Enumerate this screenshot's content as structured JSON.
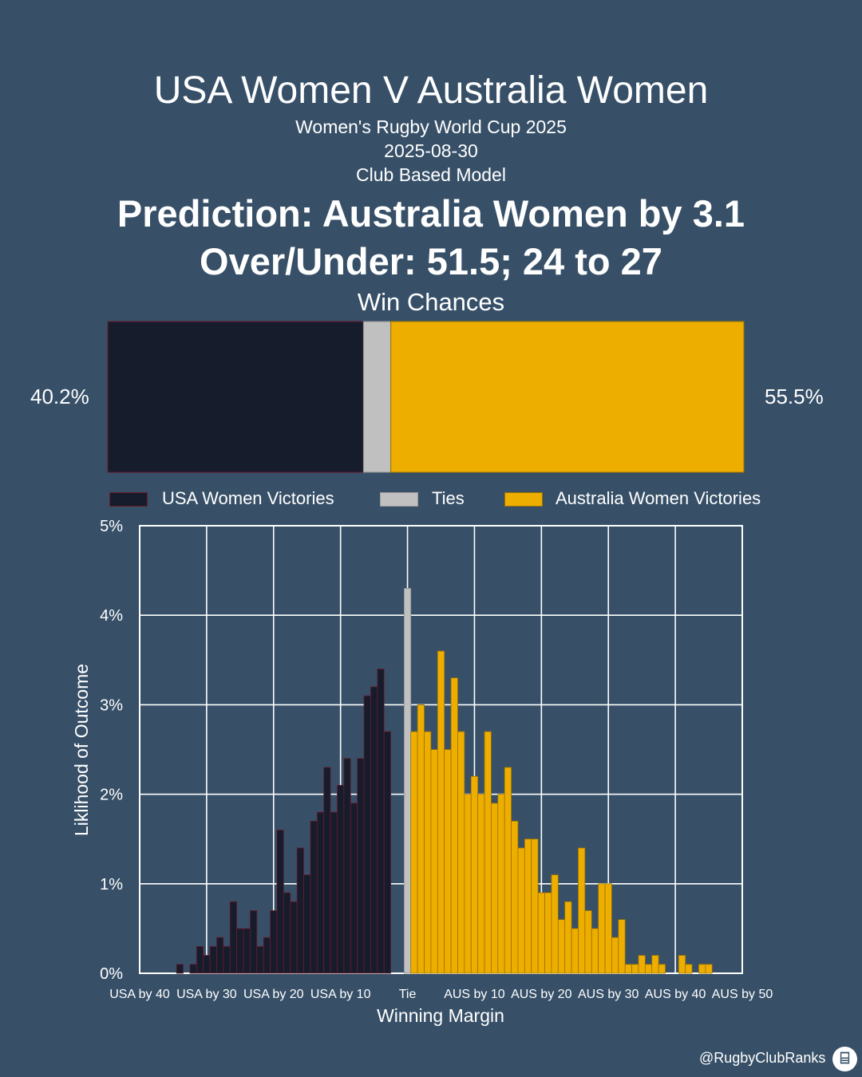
{
  "header": {
    "title": "USA Women V Australia Women",
    "competition": "Women's Rugby World Cup 2025",
    "date": "2025-08-30",
    "model": "Club Based Model",
    "prediction": "Prediction: Australia Women by 3.1",
    "over_under": "Over/Under: 51.5; 24 to 27",
    "win_chances_label": "Win Chances"
  },
  "win_chances": {
    "usa_pct": 40.2,
    "tie_pct": 4.3,
    "aus_pct": 55.5,
    "usa_label": "40.2%",
    "aus_label": "55.5%"
  },
  "legend": {
    "usa": "USA Women Victories",
    "tie": "Ties",
    "aus": "Australia Women Victories"
  },
  "colors": {
    "usa": "#171c2c",
    "usa_edge": "#6b1a2c",
    "tie": "#c0c0c0",
    "aus": "#eeae00",
    "aus_edge": "#9a7200",
    "background": "#375068"
  },
  "chart_data": {
    "type": "bar",
    "xlabel": "Winning Margin",
    "ylabel": "Liklihood of Outcome",
    "ylim": [
      0,
      5
    ],
    "xlim": [
      -40,
      50
    ],
    "grid": true,
    "yticks": [
      "0%",
      "1%",
      "2%",
      "3%",
      "4%",
      "5%"
    ],
    "xtick_labels": [
      "USA by 40",
      "USA by 30",
      "USA by 20",
      "USA by 10",
      "Tie",
      "AUS by 10",
      "AUS by 20",
      "AUS by 30",
      "AUS by 40",
      "AUS by 50"
    ],
    "series": [
      {
        "name": "USA Women Victories",
        "x": [
          -34,
          -33,
          -32,
          -31,
          -30,
          -29,
          -28,
          -27,
          -26,
          -25,
          -24,
          -23,
          -22,
          -21,
          -20,
          -19,
          -18,
          -17,
          -16,
          -15,
          -14,
          -13,
          -12,
          -11,
          -10,
          -9,
          -8,
          -7,
          -6,
          -5,
          -4,
          -3,
          -2,
          -1
        ],
        "values": [
          0.1,
          0.0,
          0.1,
          0.3,
          0.2,
          0.3,
          0.4,
          0.3,
          0.8,
          0.5,
          0.5,
          0.7,
          0.3,
          0.4,
          0.7,
          1.6,
          0.9,
          0.8,
          1.4,
          1.1,
          1.7,
          1.8,
          2.3,
          1.8,
          2.1,
          2.4,
          1.9,
          2.4,
          3.1,
          3.2,
          3.4,
          2.7,
          0.0,
          0.0
        ]
      },
      {
        "name": "Ties",
        "x": [
          0
        ],
        "values": [
          4.3
        ]
      },
      {
        "name": "Australia Women Victories",
        "x": [
          1,
          2,
          3,
          4,
          5,
          6,
          7,
          8,
          9,
          10,
          11,
          12,
          13,
          14,
          15,
          16,
          17,
          18,
          19,
          20,
          21,
          22,
          23,
          24,
          25,
          26,
          27,
          28,
          29,
          30,
          31,
          32,
          33,
          34,
          35,
          36,
          37,
          38,
          39,
          40,
          41,
          42,
          43,
          44,
          45
        ],
        "values": [
          2.7,
          3.0,
          2.7,
          2.5,
          3.6,
          2.5,
          3.3,
          2.7,
          2.0,
          2.2,
          2.0,
          2.7,
          1.9,
          2.0,
          2.3,
          1.7,
          1.4,
          1.5,
          1.5,
          0.9,
          0.9,
          1.1,
          0.6,
          0.8,
          0.5,
          1.4,
          0.7,
          0.5,
          1.0,
          1.0,
          0.4,
          0.6,
          0.1,
          0.1,
          0.2,
          0.1,
          0.2,
          0.1,
          0.0,
          0.0,
          0.2,
          0.1,
          0.0,
          0.1,
          0.1
        ]
      }
    ]
  },
  "credit": "@RugbyClubRanks"
}
